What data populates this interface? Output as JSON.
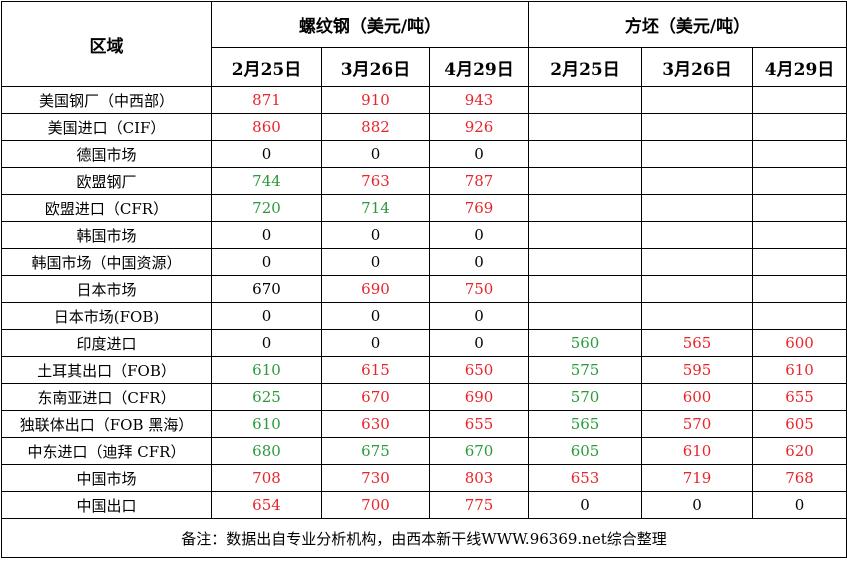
{
  "header": {
    "region": "区域",
    "rebar": "螺纹钢（美元/吨）",
    "billet": "方坯（美元/吨）",
    "dates": [
      "2月25日",
      "3月26日",
      "4月29日"
    ]
  },
  "colors": {
    "up": "#e8252a",
    "down": "#2a9a3a",
    "flat": "#000000"
  },
  "rows": [
    {
      "region": "美国钢厂（中西部）",
      "rebar": [
        {
          "v": "871",
          "c": "red"
        },
        {
          "v": "910",
          "c": "red"
        },
        {
          "v": "943",
          "c": "red"
        }
      ],
      "billet": []
    },
    {
      "region": "美国进口（CIF）",
      "rebar": [
        {
          "v": "860",
          "c": "red"
        },
        {
          "v": "882",
          "c": "red"
        },
        {
          "v": "926",
          "c": "red"
        }
      ],
      "billet": []
    },
    {
      "region": "德国市场",
      "rebar": [
        {
          "v": "0",
          "c": "black"
        },
        {
          "v": "0",
          "c": "black"
        },
        {
          "v": "0",
          "c": "black"
        }
      ],
      "billet": []
    },
    {
      "region": "欧盟钢厂",
      "rebar": [
        {
          "v": "744",
          "c": "green"
        },
        {
          "v": "763",
          "c": "red"
        },
        {
          "v": "787",
          "c": "red"
        }
      ],
      "billet": []
    },
    {
      "region": "欧盟进口（CFR）",
      "rebar": [
        {
          "v": "720",
          "c": "green"
        },
        {
          "v": "714",
          "c": "green"
        },
        {
          "v": "769",
          "c": "red"
        }
      ],
      "billet": []
    },
    {
      "region": "韩国市场",
      "rebar": [
        {
          "v": "0",
          "c": "black"
        },
        {
          "v": "0",
          "c": "black"
        },
        {
          "v": "0",
          "c": "black"
        }
      ],
      "billet": []
    },
    {
      "region": "韩国市场（中国资源）",
      "rebar": [
        {
          "v": "0",
          "c": "black"
        },
        {
          "v": "0",
          "c": "black"
        },
        {
          "v": "0",
          "c": "black"
        }
      ],
      "billet": []
    },
    {
      "region": "日本市场",
      "rebar": [
        {
          "v": "670",
          "c": "black"
        },
        {
          "v": "690",
          "c": "red"
        },
        {
          "v": "750",
          "c": "red"
        }
      ],
      "billet": []
    },
    {
      "region": "日本市场(FOB)",
      "rebar": [
        {
          "v": "0",
          "c": "black"
        },
        {
          "v": "0",
          "c": "black"
        },
        {
          "v": "0",
          "c": "black"
        }
      ],
      "billet": []
    },
    {
      "region": "印度进口",
      "rebar": [
        {
          "v": "0",
          "c": "black"
        },
        {
          "v": "0",
          "c": "black"
        },
        {
          "v": "0",
          "c": "black"
        }
      ],
      "billet": [
        {
          "v": "560",
          "c": "green"
        },
        {
          "v": "565",
          "c": "red"
        },
        {
          "v": "600",
          "c": "red"
        }
      ]
    },
    {
      "region": "土耳其出口（FOB）",
      "rebar": [
        {
          "v": "610",
          "c": "green"
        },
        {
          "v": "615",
          "c": "red"
        },
        {
          "v": "650",
          "c": "red"
        }
      ],
      "billet": [
        {
          "v": "575",
          "c": "green"
        },
        {
          "v": "595",
          "c": "red"
        },
        {
          "v": "610",
          "c": "red"
        }
      ]
    },
    {
      "region": "东南亚进口（CFR）",
      "rebar": [
        {
          "v": "625",
          "c": "green"
        },
        {
          "v": "670",
          "c": "red"
        },
        {
          "v": "690",
          "c": "red"
        }
      ],
      "billet": [
        {
          "v": "570",
          "c": "green"
        },
        {
          "v": "600",
          "c": "red"
        },
        {
          "v": "655",
          "c": "red"
        }
      ]
    },
    {
      "region": "独联体出口（FOB 黑海）",
      "rebar": [
        {
          "v": "610",
          "c": "green"
        },
        {
          "v": "630",
          "c": "red"
        },
        {
          "v": "655",
          "c": "red"
        }
      ],
      "billet": [
        {
          "v": "565",
          "c": "green"
        },
        {
          "v": "570",
          "c": "red"
        },
        {
          "v": "605",
          "c": "red"
        }
      ]
    },
    {
      "region": "中东进口（迪拜 CFR）",
      "rebar": [
        {
          "v": "680",
          "c": "green"
        },
        {
          "v": "675",
          "c": "green"
        },
        {
          "v": "670",
          "c": "green"
        }
      ],
      "billet": [
        {
          "v": "605",
          "c": "green"
        },
        {
          "v": "610",
          "c": "red"
        },
        {
          "v": "620",
          "c": "red"
        }
      ]
    },
    {
      "region": "中国市场",
      "rebar": [
        {
          "v": "708",
          "c": "red"
        },
        {
          "v": "730",
          "c": "red"
        },
        {
          "v": "803",
          "c": "red"
        }
      ],
      "billet": [
        {
          "v": "653",
          "c": "red"
        },
        {
          "v": "719",
          "c": "red"
        },
        {
          "v": "768",
          "c": "red"
        }
      ]
    },
    {
      "region": "中国出口",
      "rebar": [
        {
          "v": "654",
          "c": "red"
        },
        {
          "v": "700",
          "c": "red"
        },
        {
          "v": "775",
          "c": "red"
        }
      ],
      "billet": [
        {
          "v": "0",
          "c": "black"
        },
        {
          "v": "0",
          "c": "black"
        },
        {
          "v": "0",
          "c": "black"
        }
      ]
    }
  ],
  "note": "备注：数据出自专业分析机构，由西本新干线WWW.96369.net综合整理"
}
